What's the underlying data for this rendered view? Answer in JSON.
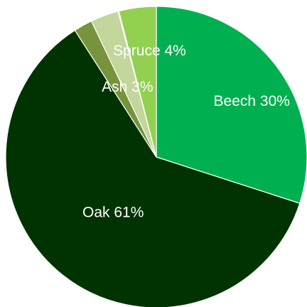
{
  "chart_data": {
    "type": "pie",
    "title": "",
    "slices": [
      {
        "name": "Beech",
        "value": 30,
        "label": "Beech 30%",
        "color": "#00B050"
      },
      {
        "name": "Oak",
        "value": 61,
        "label": "Oak 61%",
        "color": "#003300"
      },
      {
        "name": "",
        "value": 2,
        "label": "",
        "color": "#77933C"
      },
      {
        "name": "Ash",
        "value": 3,
        "label": "Ash 3%",
        "color": "#C3D69B"
      },
      {
        "name": "",
        "value": 0.1,
        "label": "",
        "color": "#31859C"
      },
      {
        "name": "Spruce",
        "value": 4,
        "label": "Spruce 4%",
        "color": "#92D050"
      }
    ],
    "legend": "none"
  }
}
